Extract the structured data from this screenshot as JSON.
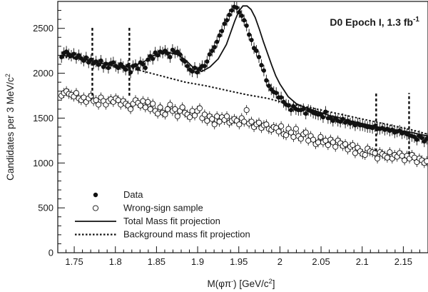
{
  "chart_data": {
    "type": "scatter",
    "title": "",
    "annotation": {
      "main": "D0 Epoch I, 1.3 fb",
      "superscript": "-1"
    },
    "xlabel": {
      "pre": "M(φπ",
      "sup1": "-",
      "mid": ") [GeV/c",
      "sup2": "2",
      "post": "]"
    },
    "ylabel": {
      "pre": "Candidates per 3 MeV/c",
      "sup": "2"
    },
    "xlim": [
      1.73,
      2.18
    ],
    "ylim": [
      0,
      2800
    ],
    "xticks": [
      1.75,
      1.8,
      1.85,
      1.9,
      1.95,
      2,
      2.05,
      2.1,
      2.15
    ],
    "xtick_labels": [
      "1.75",
      "1.8",
      "1.85",
      "1.9",
      "1.95",
      "2",
      "2.05",
      "2.1",
      "2.15"
    ],
    "yticks": [
      0,
      500,
      1000,
      1500,
      2000,
      2500
    ],
    "ytick_labels": [
      "0",
      "500",
      "1000",
      "1500",
      "2000",
      "2500"
    ],
    "grid": false,
    "legend_position": "bottom-left",
    "legend": [
      {
        "label": "Data",
        "marker": "filled-circle"
      },
      {
        "label": "Wrong-sign sample",
        "marker": "open-circle"
      },
      {
        "label": "Total Mass fit projection",
        "marker": "solid-line"
      },
      {
        "label": "Background mass fit projection",
        "marker": "dotted-line"
      }
    ],
    "sideband_markers": {
      "x": [
        1.772,
        1.817,
        2.117,
        2.157
      ],
      "ymin": [
        1750,
        1750,
        1130,
        1100
      ],
      "ymax": [
        2520,
        2520,
        1780,
        1780
      ]
    },
    "series": [
      {
        "name": "Data",
        "style": "filled-circle",
        "color": "#111111",
        "x": [
          1.7345,
          1.7375,
          1.7405,
          1.7435,
          1.7465,
          1.7495,
          1.7525,
          1.7555,
          1.7585,
          1.7615,
          1.7645,
          1.7675,
          1.7705,
          1.7735,
          1.7765,
          1.7795,
          1.7825,
          1.7855,
          1.7885,
          1.7915,
          1.7945,
          1.7975,
          1.8005,
          1.8035,
          1.8065,
          1.8095,
          1.8125,
          1.8155,
          1.8185,
          1.8215,
          1.8245,
          1.8275,
          1.8305,
          1.8335,
          1.8365,
          1.8395,
          1.8425,
          1.8455,
          1.8485,
          1.8515,
          1.8545,
          1.8575,
          1.8605,
          1.8635,
          1.8665,
          1.8695,
          1.8725,
          1.8755,
          1.8785,
          1.8815,
          1.8845,
          1.8875,
          1.8905,
          1.8935,
          1.8965,
          1.8995,
          1.9025,
          1.9055,
          1.9085,
          1.9115,
          1.9145,
          1.9175,
          1.9205,
          1.9235,
          1.9265,
          1.9295,
          1.9325,
          1.9355,
          1.9385,
          1.9415,
          1.9445,
          1.9475,
          1.9505,
          1.9535,
          1.9565,
          1.9595,
          1.9625,
          1.9655,
          1.9685,
          1.9715,
          1.9745,
          1.9775,
          1.9805,
          1.9835,
          1.9865,
          1.9895,
          1.9925,
          1.9955,
          1.9985,
          2.0015,
          2.0045,
          2.0075,
          2.0105,
          2.0135,
          2.0165,
          2.0195,
          2.0225,
          2.0255,
          2.0285,
          2.0315,
          2.0345,
          2.0375,
          2.0405,
          2.0435,
          2.0465,
          2.0495,
          2.0525,
          2.0555,
          2.0585,
          2.0615,
          2.0645,
          2.0675,
          2.0705,
          2.0735,
          2.0765,
          2.0795,
          2.0825,
          2.0855,
          2.0885,
          2.0915,
          2.0945,
          2.0975,
          2.1005,
          2.1035,
          2.1065,
          2.1095,
          2.1125,
          2.1155,
          2.1185,
          2.1215,
          2.1245,
          2.1275,
          2.1305,
          2.1335,
          2.1365,
          2.1395,
          2.1425,
          2.1455,
          2.1485,
          2.1515,
          2.1545,
          2.1575,
          2.1605,
          2.1635,
          2.1665,
          2.1695,
          2.1725,
          2.1755,
          2.1785
        ],
        "y": [
          2180,
          2225,
          2240,
          2210,
          2195,
          2215,
          2170,
          2200,
          2165,
          2140,
          2175,
          2120,
          2150,
          2110,
          2130,
          2095,
          2140,
          2070,
          2105,
          2060,
          2110,
          2120,
          2080,
          2060,
          2100,
          2070,
          2040,
          2085,
          2010,
          2080,
          2090,
          2050,
          2120,
          2100,
          2060,
          2150,
          2190,
          2160,
          2230,
          2200,
          2240,
          2230,
          2250,
          2220,
          2180,
          2260,
          2230,
          2240,
          2210,
          2150,
          2130,
          2080,
          2040,
          2020,
          2060,
          2010,
          2050,
          2080,
          2080,
          2130,
          2210,
          2250,
          2290,
          2350,
          2420,
          2470,
          2550,
          2590,
          2650,
          2700,
          2740,
          2730,
          2680,
          2640,
          2590,
          2530,
          2430,
          2370,
          2280,
          2250,
          2180,
          2090,
          2030,
          1920,
          1860,
          1820,
          1790,
          1780,
          1730,
          1730,
          1680,
          1650,
          1640,
          1590,
          1630,
          1600,
          1590,
          1590,
          1600,
          1550,
          1590,
          1580,
          1560,
          1550,
          1540,
          1540,
          1510,
          1570,
          1500,
          1500,
          1470,
          1500,
          1470,
          1460,
          1490,
          1450,
          1470,
          1440,
          1450,
          1420,
          1440,
          1420,
          1420,
          1410,
          1400,
          1400,
          1390,
          1410,
          1380,
          1380,
          1390,
          1370,
          1380,
          1360,
          1370,
          1340,
          1350,
          1360,
          1330,
          1340,
          1320,
          1310,
          1300,
          1290,
          1260,
          1300,
          1280,
          1240,
          1270
        ]
      },
      {
        "name": "Wrong-sign sample",
        "style": "open-circle",
        "color": "#111111",
        "x": [
          1.7345,
          1.7375,
          1.7405,
          1.7435,
          1.7465,
          1.7495,
          1.7525,
          1.7555,
          1.7585,
          1.7615,
          1.7645,
          1.7675,
          1.7705,
          1.7735,
          1.7765,
          1.7795,
          1.7825,
          1.7855,
          1.7885,
          1.7915,
          1.7945,
          1.7975,
          1.8005,
          1.8035,
          1.8065,
          1.8095,
          1.8125,
          1.8155,
          1.8185,
          1.8215,
          1.8245,
          1.8275,
          1.8305,
          1.8335,
          1.8365,
          1.8395,
          1.8425,
          1.8455,
          1.8485,
          1.8515,
          1.8545,
          1.8575,
          1.8605,
          1.8635,
          1.8665,
          1.8695,
          1.8725,
          1.8755,
          1.8785,
          1.8815,
          1.8845,
          1.8875,
          1.8905,
          1.8935,
          1.8965,
          1.8995,
          1.9025,
          1.9055,
          1.9085,
          1.9115,
          1.9145,
          1.9175,
          1.9205,
          1.9235,
          1.9265,
          1.9295,
          1.9325,
          1.9355,
          1.9385,
          1.9415,
          1.9445,
          1.9475,
          1.9505,
          1.9535,
          1.9565,
          1.9595,
          1.9625,
          1.9655,
          1.9685,
          1.9715,
          1.9745,
          1.9775,
          1.9805,
          1.9835,
          1.9865,
          1.9895,
          1.9925,
          1.9955,
          1.9985,
          2.0015,
          2.0045,
          2.0075,
          2.0105,
          2.0135,
          2.0165,
          2.0195,
          2.0225,
          2.0255,
          2.0285,
          2.0315,
          2.0345,
          2.0375,
          2.0405,
          2.0435,
          2.0465,
          2.0495,
          2.0525,
          2.0555,
          2.0585,
          2.0615,
          2.0645,
          2.0675,
          2.0705,
          2.0735,
          2.0765,
          2.0795,
          2.0825,
          2.0855,
          2.0885,
          2.0915,
          2.0945,
          2.0975,
          2.1005,
          2.1035,
          2.1065,
          2.1095,
          2.1125,
          2.1155,
          2.1185,
          2.1215,
          2.1245,
          2.1275,
          2.1305,
          2.1335,
          2.1365,
          2.1395,
          2.1425,
          2.1455,
          2.1485,
          2.1515,
          2.1545,
          2.1575,
          2.1605,
          2.1635,
          2.1665,
          2.1695,
          2.1725,
          2.1755,
          2.1785
        ],
        "y": [
          1750,
          1780,
          1800,
          1770,
          1760,
          1740,
          1780,
          1720,
          1700,
          1730,
          1680,
          1720,
          1750,
          1690,
          1700,
          1650,
          1730,
          1690,
          1650,
          1690,
          1710,
          1680,
          1720,
          1700,
          1650,
          1690,
          1660,
          1640,
          1600,
          1660,
          1700,
          1670,
          1640,
          1690,
          1620,
          1680,
          1600,
          1660,
          1580,
          1550,
          1620,
          1560,
          1540,
          1600,
          1650,
          1580,
          1600,
          1520,
          1580,
          1620,
          1560,
          1540,
          1510,
          1580,
          1530,
          1580,
          1610,
          1500,
          1540,
          1470,
          1520,
          1490,
          1430,
          1520,
          1460,
          1510,
          1480,
          1520,
          1450,
          1470,
          1490,
          1470,
          1430,
          1500,
          1460,
          1590,
          1440,
          1460,
          1400,
          1430,
          1450,
          1390,
          1420,
          1430,
          1380,
          1370,
          1400,
          1390,
          1350,
          1410,
          1320,
          1310,
          1380,
          1340,
          1290,
          1380,
          1300,
          1270,
          1320,
          1340,
          1250,
          1300,
          1260,
          1210,
          1230,
          1290,
          1230,
          1250,
          1200,
          1260,
          1230,
          1180,
          1250,
          1220,
          1190,
          1210,
          1150,
          1180,
          1200,
          1110,
          1170,
          1130,
          1100,
          1090,
          1160,
          1130,
          1120,
          1110,
          1050,
          1120,
          1100,
          1080,
          1060,
          1120,
          1050,
          1090,
          1070,
          1110,
          1080,
          1030,
          1080,
          1050,
          1090,
          1060,
          1010,
          1050,
          1030,
          1000,
          1020
        ]
      },
      {
        "name": "Total Mass fit projection",
        "style": "solid-line",
        "color": "#111111",
        "x": [
          1.735,
          1.745,
          1.755,
          1.765,
          1.775,
          1.785,
          1.795,
          1.805,
          1.815,
          1.825,
          1.835,
          1.845,
          1.855,
          1.865,
          1.875,
          1.885,
          1.895,
          1.905,
          1.915,
          1.925,
          1.935,
          1.94,
          1.945,
          1.95,
          1.955,
          1.96,
          1.965,
          1.97,
          1.975,
          1.98,
          1.985,
          1.99,
          1.995,
          2,
          2.005,
          2.01,
          2.02,
          2.03,
          2.04,
          2.05,
          2.06,
          2.07,
          2.08,
          2.09,
          2.1,
          2.11,
          2.12,
          2.13,
          2.14,
          2.15,
          2.16,
          2.17,
          2.18
        ],
        "y": [
          2200,
          2185,
          2170,
          2150,
          2125,
          2105,
          2085,
          2070,
          2075,
          2090,
          2130,
          2190,
          2225,
          2230,
          2210,
          2150,
          2060,
          2020,
          2070,
          2160,
          2320,
          2450,
          2580,
          2690,
          2750,
          2750,
          2710,
          2620,
          2490,
          2350,
          2220,
          2090,
          1970,
          1880,
          1810,
          1740,
          1660,
          1620,
          1590,
          1560,
          1530,
          1510,
          1480,
          1460,
          1440,
          1420,
          1400,
          1385,
          1370,
          1355,
          1340,
          1320,
          1300
        ]
      },
      {
        "name": "Background mass fit projection",
        "style": "dotted-line",
        "color": "#111111",
        "x": [
          1.735,
          1.76,
          1.785,
          1.81,
          1.835,
          1.86,
          1.885,
          1.91,
          1.935,
          1.96,
          1.985,
          2.01,
          2.035,
          2.06,
          2.085,
          2.11,
          2.135,
          2.16,
          2.18
        ],
        "y": [
          2180,
          2160,
          2120,
          2080,
          2020,
          1960,
          1900,
          1860,
          1810,
          1760,
          1720,
          1660,
          1620,
          1570,
          1520,
          1470,
          1420,
          1370,
          1320
        ]
      }
    ]
  }
}
